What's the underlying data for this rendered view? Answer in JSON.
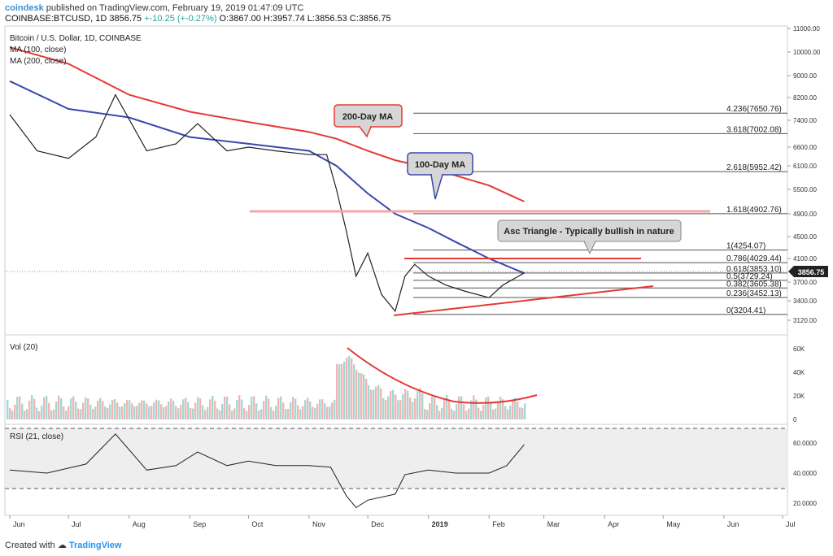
{
  "header": {
    "brand": "coindesk",
    "published": "published on TradingView.com, February 19, 2019 01:47:09 UTC",
    "symbol": "COINBASE:BTCUSD, 1D",
    "last": "3856.75",
    "change": "+-10.25 (+-0.27%)",
    "ohlc": "O:3867.00 H:3957.74 L:3856.53 C:3856.75"
  },
  "footer": {
    "created_with": "Created with",
    "brand": "TradingView"
  },
  "chart_data": {
    "type": "line",
    "title": "Bitcoin / U.S. Dollar, 1D, COINBASE",
    "legend": [
      "MA (100, close)",
      "MA (200, close)"
    ],
    "x_ticks": [
      "Jun",
      "Jul",
      "Aug",
      "Sep",
      "Oct",
      "Nov",
      "Dec",
      "2019",
      "Feb",
      "Mar",
      "Apr",
      "May",
      "Jun",
      "Jul"
    ],
    "price_axis": {
      "ticks": [
        "11000.00",
        "10000.00",
        "9000.00",
        "8200.00",
        "7400.00",
        "6600.00",
        "6100.00",
        "5500.00",
        "4900.00",
        "4500.00",
        "4100.00",
        "3700.00",
        "3400.00",
        "3120.00"
      ],
      "current": "3856.75"
    },
    "series": [
      {
        "name": "MA (200, close)",
        "color": "#e53935",
        "x": [
          "2018-06-01",
          "2018-07-01",
          "2018-08-01",
          "2018-09-01",
          "2018-10-01",
          "2018-11-01",
          "2018-11-15",
          "2018-12-01",
          "2018-12-15",
          "2019-01-01",
          "2019-01-15",
          "2019-02-01",
          "2019-02-19"
        ],
        "values": [
          10200,
          9500,
          8300,
          7700,
          7350,
          7050,
          6850,
          6500,
          6250,
          6050,
          5850,
          5600,
          5200
        ]
      },
      {
        "name": "MA (100, close)",
        "color": "#3949ab",
        "x": [
          "2018-06-01",
          "2018-07-01",
          "2018-08-01",
          "2018-09-01",
          "2018-10-01",
          "2018-11-01",
          "2018-11-15",
          "2018-12-01",
          "2018-12-15",
          "2019-01-01",
          "2019-01-15",
          "2019-02-01",
          "2019-02-19"
        ],
        "values": [
          8800,
          7800,
          7500,
          6900,
          6700,
          6500,
          6100,
          5400,
          4900,
          4650,
          4400,
          4100,
          3850
        ]
      },
      {
        "name": "BTCUSD close",
        "color": "#222222",
        "x": [
          "2018-06-01",
          "2018-06-15",
          "2018-07-01",
          "2018-07-15",
          "2018-07-25",
          "2018-08-10",
          "2018-08-25",
          "2018-09-05",
          "2018-09-20",
          "2018-10-01",
          "2018-10-15",
          "2018-11-01",
          "2018-11-10",
          "2018-11-15",
          "2018-11-20",
          "2018-11-25",
          "2018-12-01",
          "2018-12-08",
          "2018-12-15",
          "2018-12-20",
          "2018-12-25",
          "2019-01-01",
          "2019-01-10",
          "2019-01-20",
          "2019-02-01",
          "2019-02-08",
          "2019-02-19"
        ],
        "values": [
          7600,
          6500,
          6300,
          6900,
          8300,
          6500,
          6700,
          7300,
          6500,
          6600,
          6500,
          6400,
          6400,
          5500,
          4600,
          3800,
          4200,
          3500,
          3250,
          3800,
          4000,
          3800,
          3650,
          3550,
          3450,
          3650,
          3856
        ]
      }
    ],
    "fib_levels": [
      {
        "ratio": "4.236",
        "value": 7650.76
      },
      {
        "ratio": "3.618",
        "value": 7002.08
      },
      {
        "ratio": "2.618",
        "value": 5952.42
      },
      {
        "ratio": "1.618",
        "value": 4902.76
      },
      {
        "ratio": "1",
        "value": 4254.07
      },
      {
        "ratio": "0.786",
        "value": 4029.44
      },
      {
        "ratio": "0.618",
        "value": 3853.1
      },
      {
        "ratio": "0.5",
        "value": 3729.24
      },
      {
        "ratio": "0.382",
        "value": 3605.38
      },
      {
        "ratio": "0.236",
        "value": 3452.13
      },
      {
        "ratio": "0",
        "value": 3204.41
      }
    ],
    "fib_labels": [
      "4.236(7650.76)",
      "3.618(7002.08)",
      "2.618(5952.42)",
      "1.618(4902.76)",
      "1(4254.07)",
      "0.786(4029.44)",
      "0.618(3853.10)",
      "0.5(3729.24)",
      "0.382(3605.38)",
      "0.236(3452.13)",
      "0(3204.41)"
    ],
    "annotations": [
      "200-Day MA",
      "100-Day MA",
      "Asc Triangle - Typically bullish in nature"
    ],
    "volume": {
      "title": "Vol (20)",
      "ticks": [
        "60K",
        "40K",
        "20K",
        "0"
      ]
    },
    "rsi": {
      "title": "RSI (21, close)",
      "ticks": [
        "60.0000",
        "40.0000",
        "20.0000"
      ],
      "x": [
        "2018-06-01",
        "2018-06-20",
        "2018-07-10",
        "2018-07-25",
        "2018-08-10",
        "2018-08-25",
        "2018-09-05",
        "2018-09-20",
        "2018-10-01",
        "2018-10-15",
        "2018-11-01",
        "2018-11-12",
        "2018-11-20",
        "2018-11-25",
        "2018-12-01",
        "2018-12-15",
        "2018-12-20",
        "2019-01-01",
        "2019-01-15",
        "2019-02-01",
        "2019-02-10",
        "2019-02-19"
      ],
      "values": [
        42,
        40,
        46,
        66,
        42,
        45,
        54,
        45,
        48,
        45,
        45,
        44,
        25,
        17,
        22,
        26,
        39,
        42,
        40,
        40,
        45,
        59
      ]
    }
  }
}
